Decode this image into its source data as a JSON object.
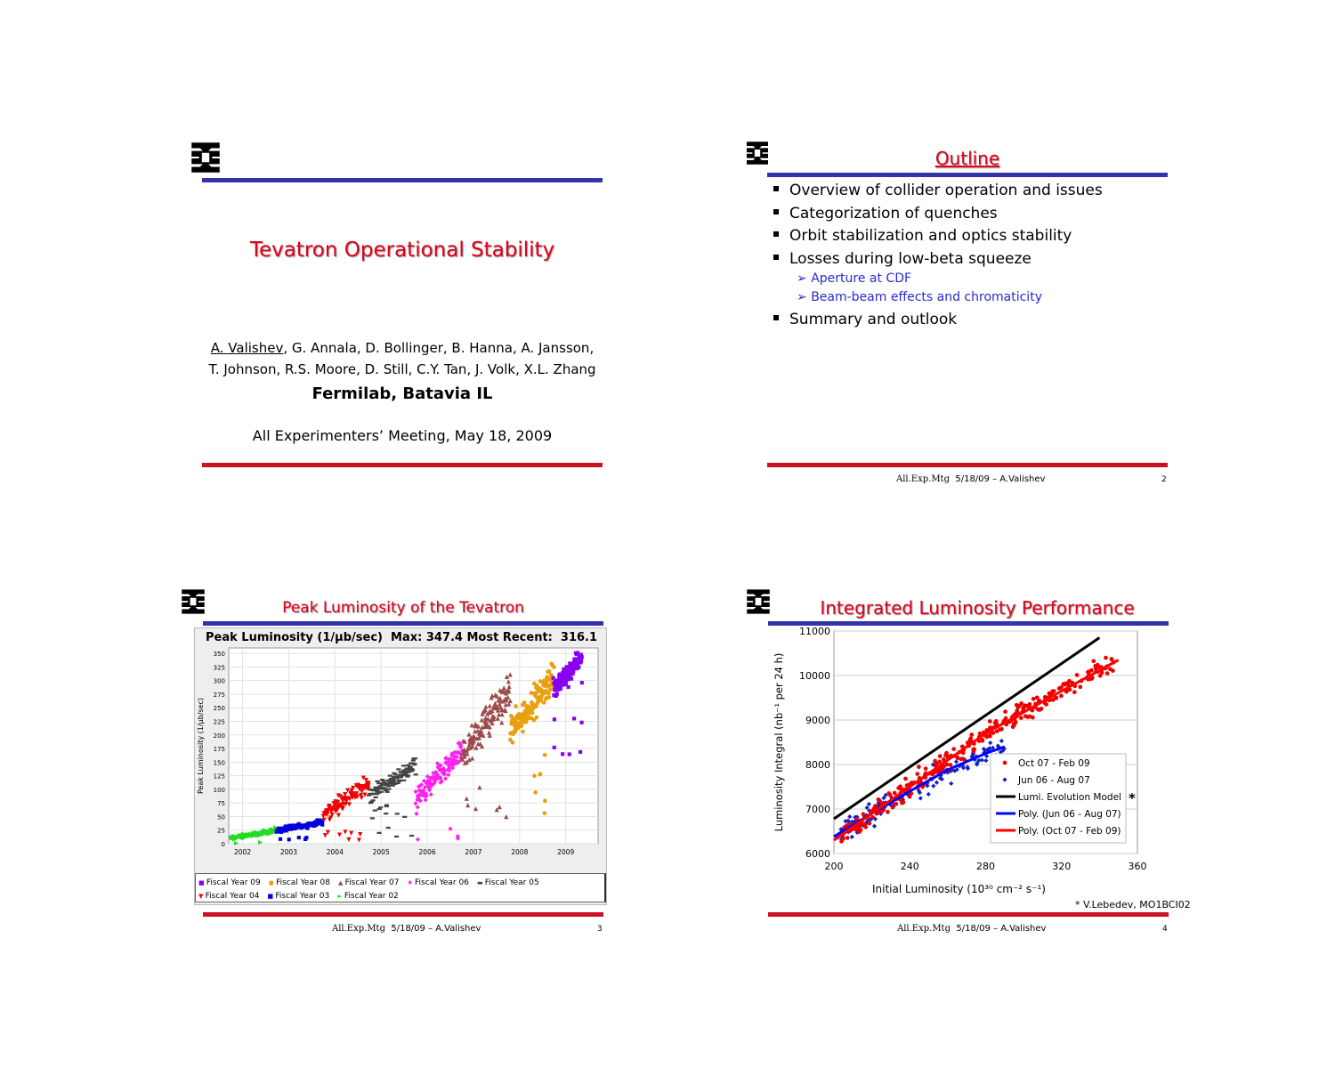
{
  "slide1": {
    "title": "Tevatron Operational Stability",
    "authors_lead": "A. Valishev",
    "authors_rest1": ", G. Annala, D. Bollinger, B. Hanna, A. Jansson,",
    "authors_line2": "T. Johnson, R.S. Moore, D. Still, C.Y. Tan, J. Volk, X.L. Zhang",
    "institution": "Fermilab, Batavia IL",
    "meeting": "All Experimenters’ Meeting, May 18, 2009"
  },
  "slide2": {
    "title": "Outline",
    "bullets": [
      "Overview of collider operation and issues",
      "Categorization of quenches",
      "Orbit stabilization and optics stability",
      "Losses during low-beta squeeze"
    ],
    "subbullets": [
      "Aperture at CDF",
      "Beam-beam effects and chromaticity"
    ],
    "last_bullet": "Summary and outlook",
    "footer_mtg": "All.Exp.Mtg",
    "footer_date": "5/18/09 – A.Valishev",
    "page": "2"
  },
  "slide3": {
    "title": "Peak Luminosity of the Tevatron",
    "footer_mtg": "All.Exp.Mtg",
    "footer_date": "5/18/09 – A.Valishev",
    "page": "3"
  },
  "slide4": {
    "title": "Integrated Luminosity Performance",
    "credit": "* V.Lebedev, MO1BCI02",
    "footer_mtg": "All.Exp.Mtg",
    "footer_date": "5/18/09 – A.Valishev",
    "page": "4"
  },
  "colors": {
    "title_red": "#e0001b",
    "bar_blue": "#3333aa",
    "bar_red": "#cc1122"
  },
  "chart_data": [
    {
      "type": "scatter",
      "title": "Peak Luminosity (1/µb/sec)  Max: 347.4 Most Recent:  316.1",
      "ylabel": "Peak Luminosity (1/µb/sec)",
      "xlabel": "",
      "x_ticks": [
        "2002",
        "2003",
        "2004",
        "2005",
        "2006",
        "2007",
        "2008",
        "2009"
      ],
      "y_ticks": [
        "0",
        "25",
        "50",
        "75",
        "100",
        "125",
        "150",
        "175",
        "200",
        "225",
        "250",
        "275",
        "300",
        "325",
        "350"
      ],
      "xlim": [
        2001.7,
        2009.7
      ],
      "ylim": [
        0,
        360
      ],
      "grid": true,
      "legend_position": "bottom",
      "series": [
        {
          "name": "Fiscal Year 09",
          "color": "#8800ee",
          "marker": "square",
          "x_range": [
            2008.75,
            2009.35
          ],
          "y_range": [
            250,
            345
          ]
        },
        {
          "name": "Fiscal Year 08",
          "color": "#e8a010",
          "marker": "circle",
          "x_range": [
            2007.8,
            2008.75
          ],
          "y_range": [
            150,
            310
          ]
        },
        {
          "name": "Fiscal Year 07",
          "color": "#9a4a4a",
          "marker": "triangle",
          "x_range": [
            2006.75,
            2007.8
          ],
          "y_range": [
            100,
            285
          ]
        },
        {
          "name": "Fiscal Year 06",
          "color": "#ff22ee",
          "marker": "diamond",
          "x_range": [
            2005.75,
            2006.75
          ],
          "y_range": [
            30,
            170
          ]
        },
        {
          "name": "Fiscal Year 05",
          "color": "#444444",
          "marker": "dash",
          "x_range": [
            2004.75,
            2005.75
          ],
          "y_range": [
            60,
            145
          ]
        },
        {
          "name": "Fiscal Year 04",
          "color": "#ee0000",
          "marker": "tri-down",
          "x_range": [
            2003.75,
            2004.75
          ],
          "y_range": [
            20,
            110
          ]
        },
        {
          "name": "Fiscal Year 03",
          "color": "#0000dd",
          "marker": "square",
          "x_range": [
            2002.75,
            2003.75
          ],
          "y_range": [
            15,
            40
          ]
        },
        {
          "name": "Fiscal Year 02",
          "color": "#22dd22",
          "marker": "tri-right",
          "x_range": [
            2001.75,
            2002.75
          ],
          "y_range": [
            2,
            25
          ]
        }
      ]
    },
    {
      "type": "scatter",
      "xlabel": "Initial Luminosity (10³⁰ cm⁻² s⁻¹)",
      "ylabel": "Luminosity Integral (nb⁻¹ per 24 h)",
      "xlim": [
        200,
        360
      ],
      "ylim": [
        6000,
        11000
      ],
      "x_ticks": [
        "200",
        "240",
        "280",
        "320",
        "360"
      ],
      "y_ticks": [
        "6000",
        "7000",
        "8000",
        "9000",
        "10000",
        "11000"
      ],
      "grid": true,
      "legend_position": "bottom-right",
      "legend_star": "*",
      "series": [
        {
          "name": "Oct 07 - Feb 09",
          "color": "#ee0000",
          "marker": "circle",
          "x_range": [
            200,
            350
          ]
        },
        {
          "name": "Jun 06 - Aug 07",
          "color": "#1122cc",
          "marker": "diamond",
          "x_range": [
            200,
            290
          ]
        },
        {
          "name": "Lumi. Evolution Model",
          "color": "#000000",
          "line": [
            [
              200,
              6780
            ],
            [
              340,
              10850
            ]
          ]
        },
        {
          "name": "Poly. (Jun 06 - Aug 07)",
          "color": "#0000ff",
          "line": [
            [
              200,
              6380
            ],
            [
              220,
              6900
            ],
            [
              240,
              7400
            ],
            [
              260,
              7880
            ],
            [
              280,
              8250
            ],
            [
              290,
              8400
            ]
          ]
        },
        {
          "name": "Poly. (Oct 07 - Feb 09)",
          "color": "#ff0000",
          "line": [
            [
              200,
              6300
            ],
            [
              240,
              7500
            ],
            [
              280,
              8700
            ],
            [
              320,
              9650
            ],
            [
              350,
              10350
            ]
          ]
        }
      ]
    }
  ]
}
